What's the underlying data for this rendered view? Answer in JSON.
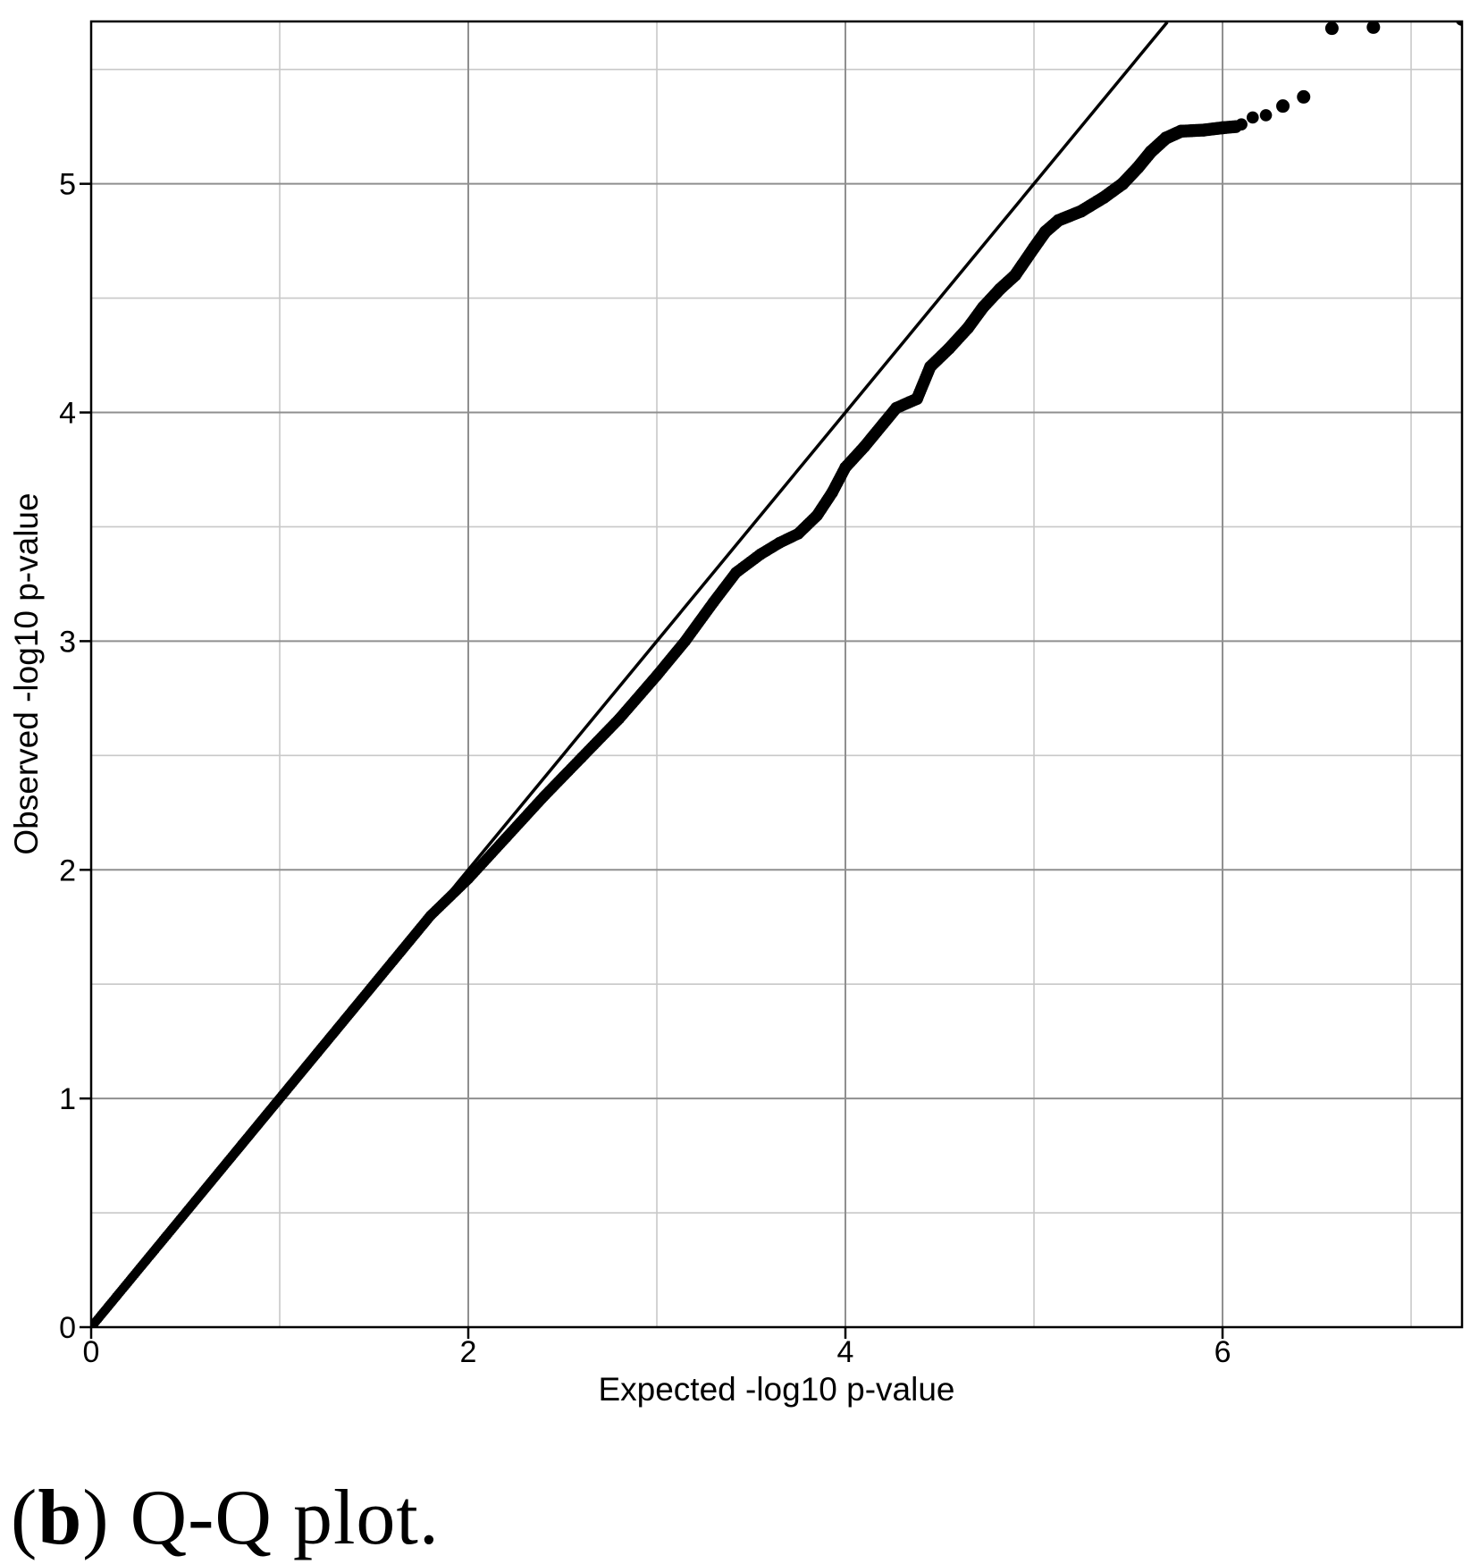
{
  "figure": {
    "caption_prefix": "(",
    "caption_label": "b",
    "caption_suffix": ") Q-Q plot."
  },
  "chart_data": {
    "type": "scatter",
    "title": "",
    "xlabel": "Expected -log10 p-value",
    "ylabel": "Observed -log10 p-value",
    "xlim": [
      0,
      7.27
    ],
    "ylim": [
      0,
      5.71
    ],
    "x_ticks": [
      0,
      2,
      4,
      6
    ],
    "y_ticks": [
      0,
      1,
      2,
      3,
      4,
      5
    ],
    "x_gridlines_major": [
      2,
      4,
      6
    ],
    "x_gridlines_minor": [
      1,
      3,
      5,
      7
    ],
    "y_gridlines_major": [
      1,
      2,
      3,
      4,
      5
    ],
    "y_gridlines_minor": [
      0.5,
      1.5,
      2.5,
      3.5,
      4.5,
      5.5
    ],
    "grid": true,
    "legend_position": "none",
    "reference_line": {
      "slope": 1,
      "intercept": 0,
      "x_start": 0,
      "x_end": 5.707
    },
    "series": [
      {
        "name": "observed-vs-expected-quantiles",
        "style": "dense-point-band",
        "anchors": [
          [
            0.0,
            0.0
          ],
          [
            0.4,
            0.4
          ],
          [
            0.8,
            0.8
          ],
          [
            1.2,
            1.2
          ],
          [
            1.6,
            1.6
          ],
          [
            1.8,
            1.8
          ],
          [
            2.0,
            1.96
          ],
          [
            2.2,
            2.14
          ],
          [
            2.4,
            2.32
          ],
          [
            2.6,
            2.49
          ],
          [
            2.8,
            2.66
          ],
          [
            3.0,
            2.85
          ],
          [
            3.15,
            3.0
          ],
          [
            3.3,
            3.17
          ],
          [
            3.42,
            3.3
          ],
          [
            3.55,
            3.38
          ],
          [
            3.65,
            3.43
          ],
          [
            3.75,
            3.47
          ],
          [
            3.85,
            3.55
          ],
          [
            3.93,
            3.65
          ],
          [
            4.0,
            3.76
          ],
          [
            4.1,
            3.85
          ],
          [
            4.2,
            3.95
          ],
          [
            4.27,
            4.02
          ],
          [
            4.38,
            4.06
          ],
          [
            4.45,
            4.2
          ],
          [
            4.55,
            4.28
          ],
          [
            4.65,
            4.37
          ],
          [
            4.73,
            4.46
          ],
          [
            4.82,
            4.54
          ],
          [
            4.9,
            4.6
          ],
          [
            5.0,
            4.72
          ],
          [
            5.06,
            4.79
          ],
          [
            5.13,
            4.84
          ],
          [
            5.25,
            4.88
          ],
          [
            5.37,
            4.94
          ],
          [
            5.47,
            5.0
          ],
          [
            5.55,
            5.07
          ],
          [
            5.62,
            5.14
          ],
          [
            5.7,
            5.2
          ],
          [
            5.78,
            5.23
          ],
          [
            5.9,
            5.235
          ],
          [
            6.0,
            5.245
          ],
          [
            6.07,
            5.25
          ]
        ],
        "tail_points": [
          [
            6.1,
            5.26
          ],
          [
            6.16,
            5.29
          ],
          [
            6.23,
            5.3
          ],
          [
            6.32,
            5.34
          ],
          [
            6.43,
            5.38
          ],
          [
            6.58,
            5.68
          ],
          [
            6.8,
            5.685
          ],
          [
            7.27,
            5.72
          ]
        ]
      }
    ],
    "colors": {
      "points": "#000000",
      "reference_line": "#000000",
      "border": "#000000",
      "major_grid": "#8f8f8f",
      "minor_grid": "#c8c8c8",
      "background": "#ffffff"
    }
  }
}
